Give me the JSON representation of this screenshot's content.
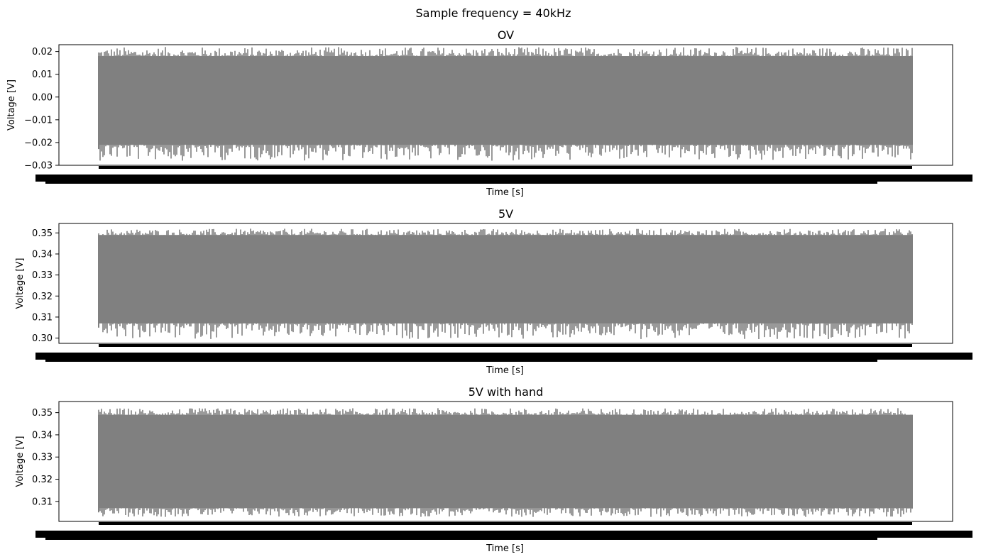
{
  "figure": {
    "suptitle": "Sample frequency = 40kHz"
  },
  "chart_data": [
    {
      "type": "line",
      "title": "OV",
      "xlabel": "Time [s]",
      "ylabel": "Voltage [V]",
      "ylim": [
        -0.03,
        0.023
      ],
      "yticks": [
        "0.02",
        "0.01",
        "0.00",
        "−0.01",
        "−0.02",
        "−0.03"
      ],
      "ytick_values": [
        0.02,
        0.01,
        0.0,
        -0.01,
        -0.02,
        -0.03
      ],
      "series": [
        {
          "color": "#808080",
          "center": 0.0,
          "band_low": -0.021,
          "band_high": 0.018,
          "peak_max": 0.022,
          "peak_min": -0.028
        }
      ],
      "grid": false,
      "xticks_overlapping": true
    },
    {
      "type": "line",
      "title": "5V",
      "xlabel": "Time [s]",
      "ylabel": "Voltage [V]",
      "ylim": [
        0.2975,
        0.3545
      ],
      "yticks": [
        "0.35",
        "0.34",
        "0.33",
        "0.32",
        "0.31",
        "0.30"
      ],
      "ytick_values": [
        0.35,
        0.34,
        0.33,
        0.32,
        0.31,
        0.3
      ],
      "series": [
        {
          "color": "#808080",
          "center": 0.328,
          "band_low": 0.307,
          "band_high": 0.349,
          "peak_max": 0.352,
          "peak_min": 0.2995
        }
      ],
      "grid": false,
      "xticks_overlapping": true
    },
    {
      "type": "line",
      "title": "5V with hand",
      "xlabel": "Time [s]",
      "ylabel": "Voltage [V]",
      "ylim": [
        0.301,
        0.355
      ],
      "yticks": [
        "0.35",
        "0.34",
        "0.33",
        "0.32",
        "0.31"
      ],
      "ytick_values": [
        0.35,
        0.34,
        0.33,
        0.32,
        0.31
      ],
      "series": [
        {
          "color": "#808080",
          "center": 0.328,
          "band_low": 0.307,
          "band_high": 0.349,
          "peak_max": 0.352,
          "peak_min": 0.303
        }
      ],
      "grid": false,
      "xticks_overlapping": true
    }
  ]
}
